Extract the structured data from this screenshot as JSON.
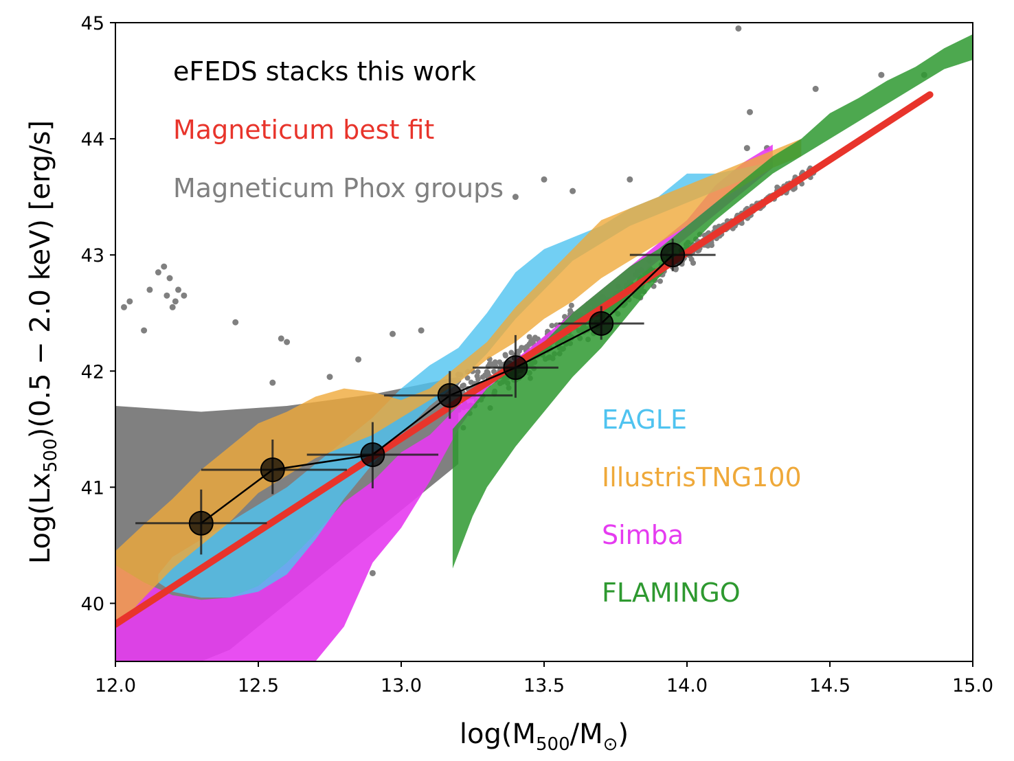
{
  "chart_data": {
    "type": "scatter",
    "xlabel": {
      "pre": "log(M",
      "sub1": "500",
      "mid": "/M",
      "sub2": "⊙",
      "post": ")"
    },
    "ylabel": {
      "pre": "Log(Lx",
      "sub": "500",
      "post": ")(0.5 − 2.0 keV) [erg/s]"
    },
    "xlim": [
      12.0,
      15.0
    ],
    "ylim": [
      39.5,
      45.0
    ],
    "xticks": [
      12.0,
      12.5,
      13.0,
      13.5,
      14.0,
      14.5,
      15.0
    ],
    "xtick_labels": [
      "12.0",
      "12.5",
      "13.0",
      "13.5",
      "14.0",
      "14.5",
      "15.0"
    ],
    "yticks": [
      40,
      41,
      42,
      43,
      44,
      45
    ],
    "ytick_labels": [
      "40",
      "41",
      "42",
      "43",
      "44",
      "45"
    ],
    "grid": false,
    "colors": {
      "efeds": "#000000",
      "fit": "#e8342b",
      "phox": "#808080",
      "eagle": "#4fc3f0",
      "tng": "#efa93a",
      "simba": "#e53bf0",
      "flamingo": "#2e9930"
    },
    "legend_top_left": [
      {
        "key": "efeds",
        "label": "eFEDS stacks this work"
      },
      {
        "key": "fit",
        "label": "Magneticum best fit"
      },
      {
        "key": "phox",
        "label": "Magneticum Phox groups"
      }
    ],
    "legend_center_right": [
      {
        "key": "eagle",
        "label": "EAGLE"
      },
      {
        "key": "tng",
        "label": "IllustrisTNG100"
      },
      {
        "key": "simba",
        "label": "Simba"
      },
      {
        "key": "flamingo",
        "label": "FLAMINGO"
      }
    ],
    "efeds_stacks": [
      {
        "x": 12.3,
        "y": 40.69,
        "xlo": 12.07,
        "xhi": 12.53,
        "ylo": 40.42,
        "yhi": 40.98
      },
      {
        "x": 12.55,
        "y": 41.15,
        "xlo": 12.3,
        "xhi": 12.81,
        "ylo": 40.94,
        "yhi": 41.41
      },
      {
        "x": 12.9,
        "y": 41.28,
        "xlo": 12.67,
        "xhi": 13.13,
        "ylo": 40.99,
        "yhi": 41.56
      },
      {
        "x": 13.17,
        "y": 41.79,
        "xlo": 12.94,
        "xhi": 13.39,
        "ylo": 41.59,
        "yhi": 42.0
      },
      {
        "x": 13.4,
        "y": 42.03,
        "xlo": 13.25,
        "xhi": 13.55,
        "ylo": 41.77,
        "yhi": 42.31
      },
      {
        "x": 13.7,
        "y": 42.41,
        "xlo": 13.55,
        "xhi": 13.85,
        "ylo": 42.27,
        "yhi": 42.56
      },
      {
        "x": 13.95,
        "y": 43.0,
        "xlo": 13.8,
        "xhi": 14.1,
        "ylo": 42.86,
        "yhi": 43.14
      }
    ],
    "magneticum_best_fit": {
      "x": [
        12.0,
        14.85
      ],
      "y": [
        39.82,
        44.38
      ]
    },
    "bands": {
      "simba": {
        "x": [
          12.0,
          12.1,
          12.2,
          12.3,
          12.4,
          12.5,
          12.6,
          12.7,
          12.8,
          12.9,
          13.0,
          13.1,
          13.2,
          13.3,
          13.4,
          13.5,
          13.6,
          13.7,
          13.8,
          13.9,
          14.0,
          14.1,
          14.2,
          14.3
        ],
        "lo": [
          39.5,
          39.5,
          39.5,
          39.5,
          39.5,
          39.5,
          39.5,
          39.5,
          39.8,
          40.35,
          40.65,
          41.05,
          41.5,
          41.85,
          42.05,
          42.2,
          42.35,
          42.55,
          42.75,
          42.95,
          43.15,
          43.35,
          43.55,
          43.75
        ],
        "hi": [
          40.33,
          40.18,
          40.07,
          40.03,
          40.05,
          40.15,
          40.35,
          40.6,
          40.87,
          41.05,
          41.3,
          41.45,
          41.7,
          41.9,
          42.1,
          42.3,
          42.5,
          42.7,
          42.9,
          43.1,
          43.3,
          43.6,
          43.8,
          43.95
        ]
      },
      "eagle": {
        "x": [
          12.15,
          12.2,
          12.3,
          12.4,
          12.5,
          12.6,
          12.7,
          12.8,
          12.9,
          13.0,
          13.1,
          13.2,
          13.3,
          13.4,
          13.5,
          13.6,
          13.7,
          13.8,
          13.9,
          14.0,
          14.1,
          14.2,
          14.3
        ],
        "lo": [
          40.18,
          40.1,
          40.05,
          40.05,
          40.1,
          40.25,
          40.55,
          40.9,
          41.2,
          41.45,
          41.7,
          41.9,
          42.15,
          42.45,
          42.7,
          42.95,
          43.1,
          43.25,
          43.35,
          43.45,
          43.55,
          43.65,
          43.75
        ],
        "hi": [
          40.25,
          40.4,
          40.55,
          40.7,
          40.85,
          41.0,
          41.2,
          41.4,
          41.6,
          41.85,
          42.05,
          42.2,
          42.5,
          42.85,
          43.05,
          43.15,
          43.25,
          43.4,
          43.5,
          43.7,
          43.7,
          43.75,
          43.8
        ]
      },
      "tng": {
        "x": [
          12.0,
          12.1,
          12.2,
          12.3,
          12.4,
          12.5,
          12.6,
          12.7,
          12.8,
          12.9,
          13.0,
          13.1,
          13.2,
          13.3,
          13.4,
          13.5,
          13.6,
          13.7,
          13.8,
          13.9,
          14.0,
          14.1,
          14.2,
          14.3,
          14.4
        ],
        "lo": [
          39.78,
          40.05,
          40.3,
          40.5,
          40.7,
          40.95,
          41.1,
          41.25,
          41.35,
          41.45,
          41.6,
          41.75,
          41.9,
          42.1,
          42.25,
          42.45,
          42.6,
          42.8,
          42.95,
          43.1,
          43.25,
          43.45,
          43.6,
          43.75,
          43.85
        ],
        "hi": [
          40.45,
          40.68,
          40.9,
          41.15,
          41.35,
          41.55,
          41.65,
          41.78,
          41.85,
          41.82,
          41.75,
          41.85,
          42.05,
          42.25,
          42.55,
          42.8,
          43.05,
          43.3,
          43.4,
          43.5,
          43.6,
          43.7,
          43.8,
          43.9,
          44.0
        ]
      },
      "flamingo": {
        "x": [
          13.18,
          13.25,
          13.3,
          13.4,
          13.5,
          13.6,
          13.7,
          13.8,
          13.9,
          14.0,
          14.1,
          14.2,
          14.3,
          14.4,
          14.5,
          14.6,
          14.7,
          14.8,
          14.9,
          15.0
        ],
        "lo": [
          40.3,
          40.75,
          41.0,
          41.35,
          41.65,
          41.95,
          42.2,
          42.5,
          42.8,
          43.05,
          43.3,
          43.5,
          43.7,
          43.85,
          44.0,
          44.15,
          44.3,
          44.45,
          44.6,
          44.68
        ],
        "hi": [
          41.5,
          41.7,
          41.85,
          42.05,
          42.25,
          42.5,
          42.7,
          42.9,
          43.05,
          43.25,
          43.45,
          43.65,
          43.85,
          44.0,
          44.22,
          44.35,
          44.5,
          44.62,
          44.78,
          44.9
        ]
      }
    },
    "phox_groups": {
      "note": "",
      "outliers": [
        {
          "x": 12.03,
          "y": 42.55
        },
        {
          "x": 12.05,
          "y": 42.6
        },
        {
          "x": 12.1,
          "y": 42.35
        },
        {
          "x": 12.12,
          "y": 42.7
        },
        {
          "x": 12.15,
          "y": 42.85
        },
        {
          "x": 12.17,
          "y": 42.9
        },
        {
          "x": 12.18,
          "y": 42.65
        },
        {
          "x": 12.19,
          "y": 42.8
        },
        {
          "x": 12.21,
          "y": 42.6
        },
        {
          "x": 12.22,
          "y": 42.7
        },
        {
          "x": 12.24,
          "y": 42.65
        },
        {
          "x": 12.2,
          "y": 42.55
        },
        {
          "x": 12.42,
          "y": 42.42
        },
        {
          "x": 12.58,
          "y": 42.28
        },
        {
          "x": 12.97,
          "y": 42.32
        },
        {
          "x": 13.07,
          "y": 42.35
        },
        {
          "x": 13.5,
          "y": 43.65
        },
        {
          "x": 13.4,
          "y": 43.5
        },
        {
          "x": 13.8,
          "y": 43.65
        },
        {
          "x": 13.6,
          "y": 43.55
        },
        {
          "x": 14.18,
          "y": 44.95
        },
        {
          "x": 14.22,
          "y": 44.23
        },
        {
          "x": 14.45,
          "y": 44.43
        },
        {
          "x": 14.68,
          "y": 44.55
        },
        {
          "x": 14.83,
          "y": 44.55
        },
        {
          "x": 14.28,
          "y": 43.92
        },
        {
          "x": 14.21,
          "y": 43.92
        },
        {
          "x": 12.9,
          "y": 40.26
        },
        {
          "x": 12.6,
          "y": 42.25
        },
        {
          "x": 12.55,
          "y": 41.9
        },
        {
          "x": 12.75,
          "y": 41.95
        },
        {
          "x": 12.85,
          "y": 42.1
        }
      ]
    }
  }
}
